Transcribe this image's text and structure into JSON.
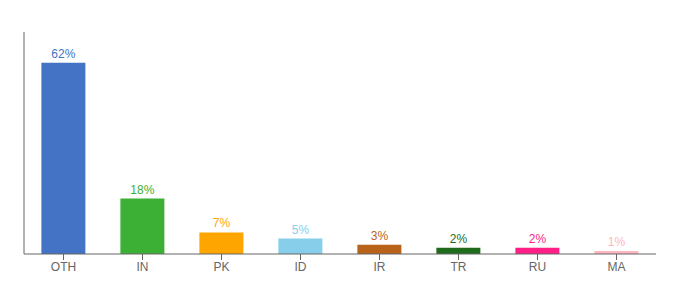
{
  "chart_data": {
    "type": "bar",
    "categories": [
      "OTH",
      "IN",
      "PK",
      "ID",
      "IR",
      "TR",
      "RU",
      "MA"
    ],
    "values": [
      62,
      18,
      7,
      5,
      3,
      2,
      2,
      1
    ],
    "value_labels": [
      "62%",
      "18%",
      "7%",
      "5%",
      "3%",
      "2%",
      "2%",
      "1%"
    ],
    "colors": [
      "#4472C4",
      "#3CB034",
      "#FFA500",
      "#87CEEB",
      "#B8621A",
      "#1E6B1E",
      "#FF1F87",
      "#FFB6C1"
    ],
    "ylim": [
      0,
      72
    ],
    "data_labels": true,
    "tick_labels": "x",
    "grid": false
  }
}
